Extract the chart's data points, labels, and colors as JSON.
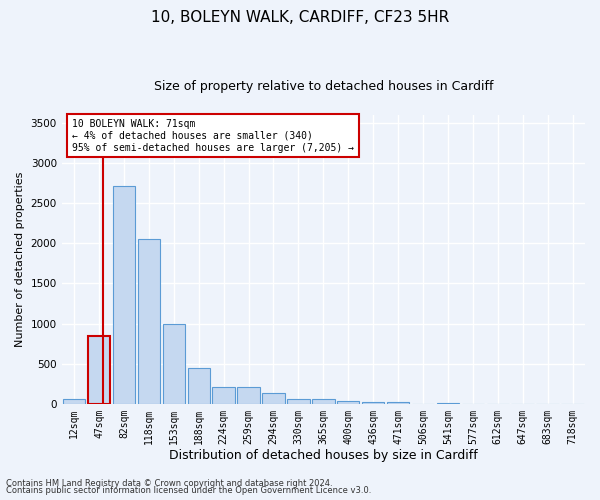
{
  "title_line1": "10, BOLEYN WALK, CARDIFF, CF23 5HR",
  "title_line2": "Size of property relative to detached houses in Cardiff",
  "xlabel": "Distribution of detached houses by size in Cardiff",
  "ylabel": "Number of detached properties",
  "bar_labels": [
    "12sqm",
    "47sqm",
    "82sqm",
    "118sqm",
    "153sqm",
    "188sqm",
    "224sqm",
    "259sqm",
    "294sqm",
    "330sqm",
    "365sqm",
    "400sqm",
    "436sqm",
    "471sqm",
    "506sqm",
    "541sqm",
    "577sqm",
    "612sqm",
    "647sqm",
    "683sqm",
    "718sqm"
  ],
  "bar_values": [
    60,
    840,
    2720,
    2060,
    1000,
    450,
    215,
    215,
    130,
    60,
    55,
    30,
    25,
    25,
    0,
    10,
    0,
    0,
    0,
    0,
    0
  ],
  "bar_color": "#c5d8f0",
  "bar_edge_color": "#5b9bd5",
  "highlight_bar_index": 1,
  "highlight_bar_edge_color": "#cc0000",
  "vline_x": 1.15,
  "ylim": [
    0,
    3600
  ],
  "yticks": [
    0,
    500,
    1000,
    1500,
    2000,
    2500,
    3000,
    3500
  ],
  "annotation_box_text": "10 BOLEYN WALK: 71sqm\n← 4% of detached houses are smaller (340)\n95% of semi-detached houses are larger (7,205) →",
  "footer_line1": "Contains HM Land Registry data © Crown copyright and database right 2024.",
  "footer_line2": "Contains public sector information licensed under the Open Government Licence v3.0.",
  "background_color": "#eef3fb",
  "plot_bg_color": "#eef3fb",
  "grid_color": "#ffffff",
  "title_fontsize": 11,
  "subtitle_fontsize": 9,
  "tick_fontsize": 7,
  "ylabel_fontsize": 8,
  "xlabel_fontsize": 9,
  "footer_fontsize": 6
}
